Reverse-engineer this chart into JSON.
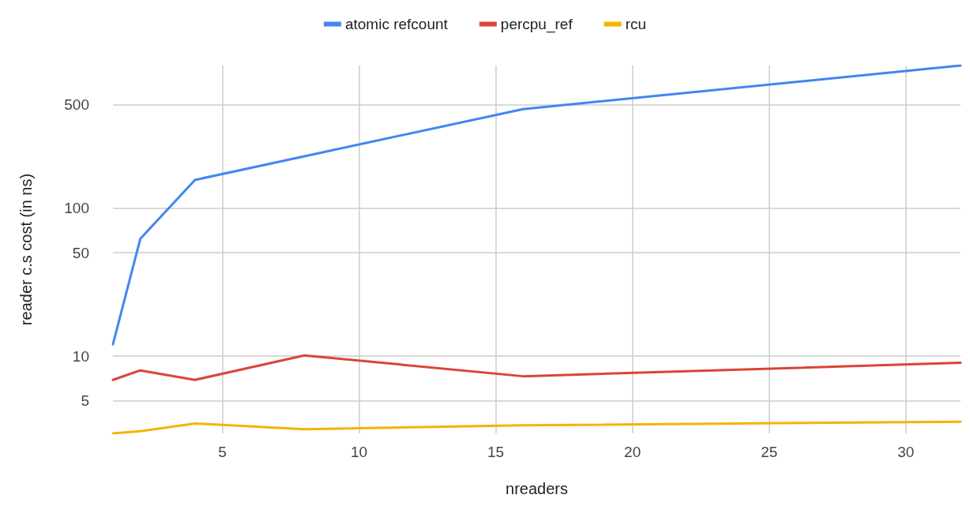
{
  "chart_data": {
    "type": "line",
    "xlabel": "nreaders",
    "ylabel": "reader c.s cost (in ns)",
    "x": [
      1,
      2,
      4,
      8,
      16,
      32
    ],
    "series": [
      {
        "name": "atomic refcount",
        "color": "#4285f4",
        "values": [
          12,
          62,
          155,
          224,
          467,
          920
        ]
      },
      {
        "name": "percpu_ref",
        "color": "#db4437",
        "values": [
          6.9,
          8.0,
          6.9,
          10.1,
          7.3,
          9.0
        ]
      },
      {
        "name": "rcu",
        "color": "#f4b400",
        "values": [
          3.0,
          3.1,
          3.5,
          3.2,
          3.4,
          3.6
        ]
      }
    ],
    "log": "y",
    "xlim": [
      1,
      32
    ],
    "ylim": [
      3,
      920
    ],
    "xticks": [
      5,
      10,
      15,
      20,
      25,
      30
    ],
    "yticks": [
      5,
      10,
      50,
      100,
      500
    ],
    "grid": true,
    "legend": "top",
    "marker": "none",
    "line_style": "solid"
  }
}
